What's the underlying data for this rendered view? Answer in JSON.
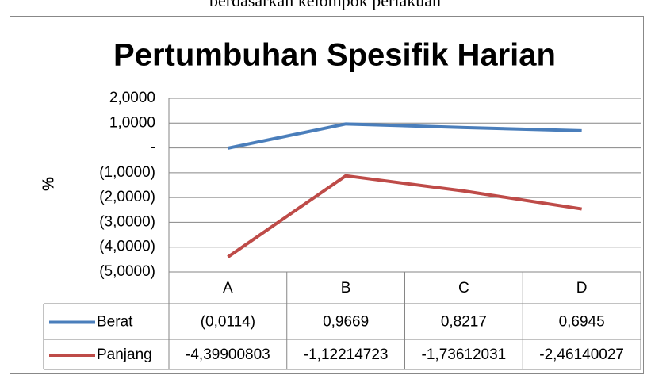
{
  "caption": "berdasarkan kelompok perlakuan",
  "chart_data": {
    "type": "line",
    "title": "Pertumbuhan Spesifik Harian",
    "y_label": "%",
    "categories": [
      "A",
      "B",
      "C",
      "D"
    ],
    "series": [
      {
        "name": "Berat",
        "color": "#4a7ebb",
        "values": [
          -0.0114,
          0.9669,
          0.8217,
          0.6945
        ],
        "value_labels": [
          "(0,0114)",
          "0,9669",
          "0,8217",
          "0,6945"
        ]
      },
      {
        "name": "Panjang",
        "color": "#be4b48",
        "values": [
          -4.39900803,
          -1.12214723,
          -1.73612031,
          -2.46140027
        ],
        "value_labels": [
          "-4,39900803",
          "-1,12214723",
          "-1,73612031",
          "-2,46140027"
        ]
      }
    ],
    "ylim": [
      -5,
      2
    ],
    "yticks": [
      {
        "value": 2,
        "label": "2,0000"
      },
      {
        "value": 1,
        "label": "1,0000"
      },
      {
        "value": 0,
        "label": "-"
      },
      {
        "value": -1,
        "label": "(1,0000)"
      },
      {
        "value": -2,
        "label": "(2,0000)"
      },
      {
        "value": -3,
        "label": "(3,0000)"
      },
      {
        "value": -4,
        "label": "(4,0000)"
      },
      {
        "value": -5,
        "label": "(5,0000)"
      }
    ],
    "grid": true,
    "data_table": true
  }
}
